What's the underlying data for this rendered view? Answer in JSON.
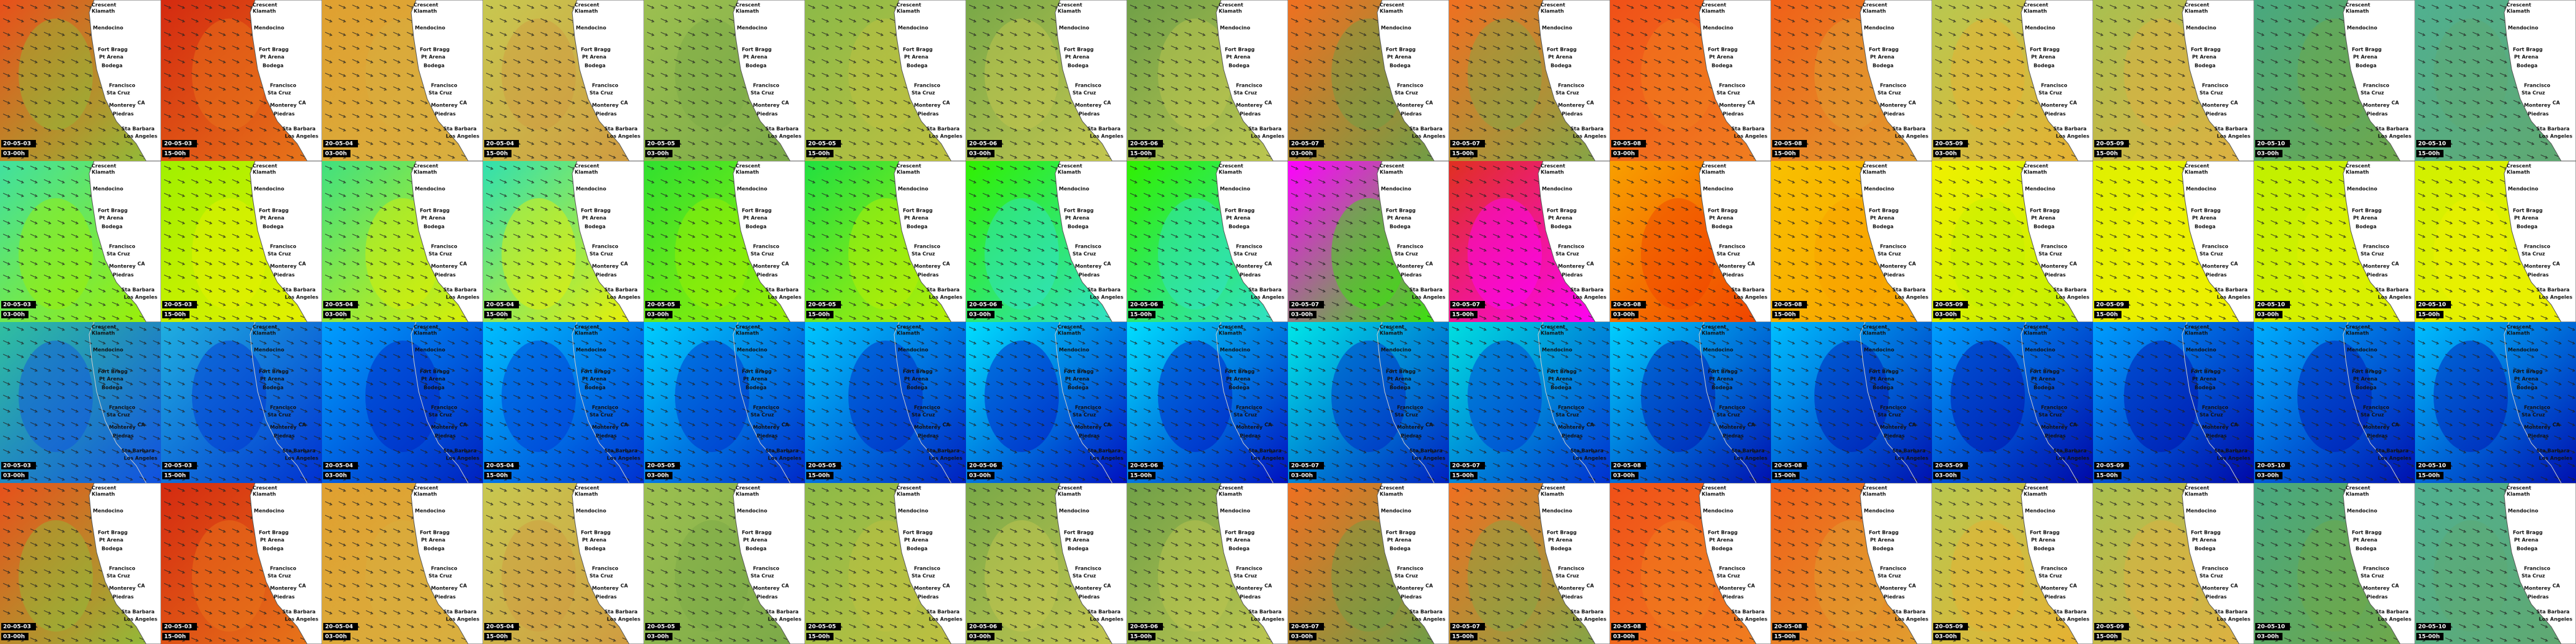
{
  "columns": [
    {
      "date": "20-05-03",
      "time": "03-00h"
    },
    {
      "date": "20-05-03",
      "time": "15-00h"
    },
    {
      "date": "20-05-04",
      "time": "03-00h"
    },
    {
      "date": "20-05-04",
      "time": "15-00h"
    },
    {
      "date": "20-05-05",
      "time": "03-00h"
    },
    {
      "date": "20-05-05",
      "time": "15-00h"
    },
    {
      "date": "20-05-06",
      "time": "03-00h"
    },
    {
      "date": "20-05-06",
      "time": "15-00h"
    },
    {
      "date": "20-05-07",
      "time": "03-00h"
    },
    {
      "date": "20-05-07",
      "time": "15-00h"
    },
    {
      "date": "20-05-08",
      "time": "03-00h"
    },
    {
      "date": "20-05-08",
      "time": "15-00h"
    },
    {
      "date": "20-05-09",
      "time": "03-00h"
    },
    {
      "date": "20-05-09",
      "time": "15-00h"
    },
    {
      "date": "20-05-10",
      "time": "03-00h"
    },
    {
      "date": "20-05-10",
      "time": "15-00h"
    }
  ],
  "place_labels": [
    "Crescent",
    "Klamath",
    "Mendocino",
    "Fort Bragg",
    "Pt Arena",
    "Bodega",
    "Francisco",
    "Sta Cruz",
    "Monterey",
    "Piedras",
    "CA",
    "Sta Barbara",
    "Los Angeles"
  ]
}
